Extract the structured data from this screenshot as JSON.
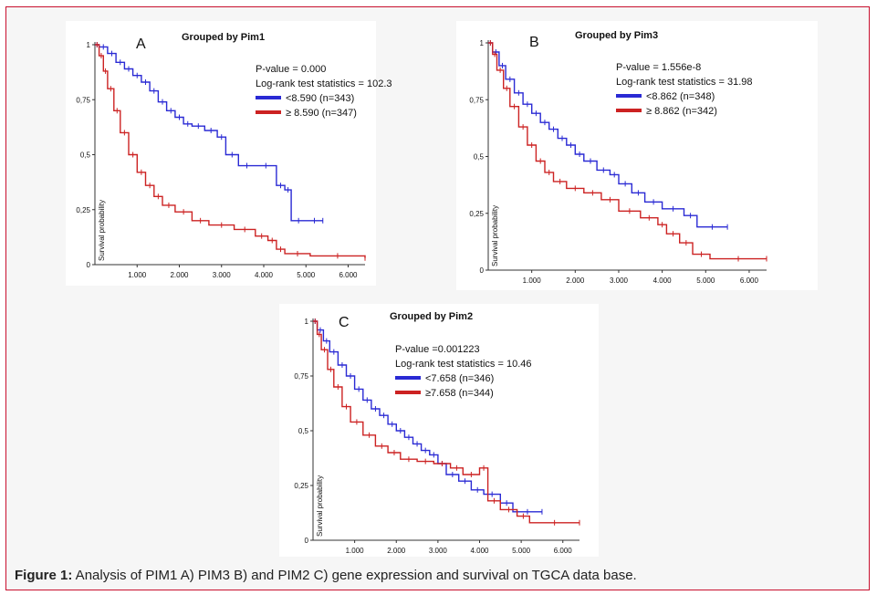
{
  "caption": {
    "label": "Figure 1:",
    "text": " Analysis of PIM1 A) PIM3 B) and PIM2 C) gene expression and survival on TGCA data base."
  },
  "colors": {
    "low": "#2a2ad4",
    "high": "#cc2222",
    "panel_bg": "#ffffff",
    "frame_border": "#c8102e"
  },
  "chart_data": [
    {
      "type": "line",
      "panel_letter": "A",
      "title": "Grouped by Pim1",
      "ylabel": "Survival probability",
      "xlabel": "",
      "y_ticks": [
        "0",
        "0,25",
        "0,5",
        "0,75",
        "1"
      ],
      "x_ticks": [
        "1.000",
        "2.000",
        "3.000",
        "4.000",
        "5.000",
        "6.000"
      ],
      "xlim": [
        0,
        6400
      ],
      "ylim": [
        0,
        1
      ],
      "stats": [
        "P-value = 0.000",
        "Log-rank test statistics = 102.3"
      ],
      "series": [
        {
          "name": "<8.590 (n=343)",
          "color": "#2a2ad4",
          "x": [
            0,
            100,
            300,
            500,
            700,
            900,
            1100,
            1300,
            1500,
            1700,
            1900,
            2100,
            2300,
            2600,
            2900,
            3100,
            3400,
            3800,
            4300,
            4500,
            4650,
            5000,
            5400
          ],
          "y": [
            1.0,
            0.99,
            0.96,
            0.92,
            0.89,
            0.86,
            0.83,
            0.79,
            0.74,
            0.7,
            0.67,
            0.64,
            0.63,
            0.61,
            0.58,
            0.5,
            0.45,
            0.45,
            0.36,
            0.34,
            0.2,
            0.2,
            0.2
          ]
        },
        {
          "name": "≥ 8.590 (n=347)",
          "color": "#cc2222",
          "x": [
            0,
            100,
            200,
            300,
            450,
            600,
            800,
            1000,
            1200,
            1400,
            1600,
            1900,
            2300,
            2700,
            3300,
            3800,
            4100,
            4300,
            4500,
            5100,
            6400
          ],
          "y": [
            1.0,
            0.95,
            0.88,
            0.8,
            0.7,
            0.6,
            0.5,
            0.42,
            0.36,
            0.31,
            0.27,
            0.24,
            0.2,
            0.18,
            0.16,
            0.13,
            0.11,
            0.07,
            0.05,
            0.04,
            0.03
          ]
        }
      ]
    },
    {
      "type": "line",
      "panel_letter": "B",
      "title": "Grouped by Pim3",
      "ylabel": "Survival probability",
      "xlabel": "",
      "y_ticks": [
        "0",
        "0,25",
        "0,5",
        "0,75",
        "1"
      ],
      "x_ticks": [
        "1.000",
        "2.000",
        "3.000",
        "4.000",
        "5.000",
        "6.000"
      ],
      "xlim": [
        0,
        6400
      ],
      "ylim": [
        0,
        1
      ],
      "stats": [
        "P-value = 1.556e-8",
        "Log-rank test statistics = 31.98"
      ],
      "series": [
        {
          "name": "<8.862 (n=348)",
          "color": "#2a2ad4",
          "x": [
            0,
            100,
            250,
            400,
            600,
            800,
            1000,
            1200,
            1400,
            1600,
            1800,
            2000,
            2200,
            2500,
            2800,
            3000,
            3300,
            3600,
            4000,
            4500,
            4800,
            5500
          ],
          "y": [
            1.0,
            0.96,
            0.9,
            0.84,
            0.78,
            0.73,
            0.69,
            0.65,
            0.62,
            0.58,
            0.55,
            0.51,
            0.48,
            0.44,
            0.42,
            0.38,
            0.34,
            0.3,
            0.27,
            0.24,
            0.19,
            0.19
          ]
        },
        {
          "name": "≥ 8.862 (n=342)",
          "color": "#cc2222",
          "x": [
            0,
            100,
            200,
            350,
            500,
            700,
            900,
            1100,
            1300,
            1500,
            1800,
            2200,
            2600,
            3000,
            3500,
            3900,
            4100,
            4400,
            4700,
            5100,
            6400
          ],
          "y": [
            1.0,
            0.95,
            0.88,
            0.8,
            0.72,
            0.63,
            0.55,
            0.48,
            0.43,
            0.39,
            0.36,
            0.34,
            0.31,
            0.26,
            0.23,
            0.2,
            0.16,
            0.12,
            0.07,
            0.05,
            0.05
          ]
        }
      ]
    },
    {
      "type": "line",
      "panel_letter": "C",
      "title": "Grouped by Pim2",
      "ylabel": "Survival probability",
      "xlabel": "",
      "y_ticks": [
        "0",
        "0,25",
        "0,5",
        "0,75",
        "1"
      ],
      "x_ticks": [
        "1.000",
        "2.000",
        "3.000",
        "4.000",
        "5.000",
        "6.000"
      ],
      "xlim": [
        0,
        6400
      ],
      "ylim": [
        0,
        1
      ],
      "stats": [
        "P-value =0.001223",
        "Log-rank test statistics = 10.46"
      ],
      "series": [
        {
          "name": "<7.658 (n=346)",
          "color": "#2a2ad4",
          "x": [
            0,
            100,
            250,
            400,
            600,
            800,
            1000,
            1200,
            1400,
            1600,
            1800,
            2000,
            2200,
            2400,
            2600,
            2800,
            3000,
            3200,
            3500,
            3800,
            4100,
            4500,
            4800,
            5500
          ],
          "y": [
            1.0,
            0.96,
            0.91,
            0.86,
            0.8,
            0.75,
            0.69,
            0.64,
            0.6,
            0.57,
            0.53,
            0.5,
            0.47,
            0.44,
            0.41,
            0.39,
            0.35,
            0.3,
            0.27,
            0.23,
            0.21,
            0.17,
            0.13,
            0.13
          ]
        },
        {
          "name": "≥7.658 (n=344)",
          "color": "#cc2222",
          "x": [
            0,
            100,
            200,
            350,
            500,
            700,
            900,
            1200,
            1500,
            1800,
            2100,
            2500,
            2900,
            3300,
            3600,
            4000,
            4200,
            4500,
            4900,
            5200,
            6400
          ],
          "y": [
            1.0,
            0.94,
            0.87,
            0.78,
            0.7,
            0.61,
            0.54,
            0.48,
            0.43,
            0.4,
            0.37,
            0.36,
            0.35,
            0.33,
            0.3,
            0.33,
            0.18,
            0.14,
            0.11,
            0.08,
            0.08
          ]
        }
      ]
    }
  ]
}
